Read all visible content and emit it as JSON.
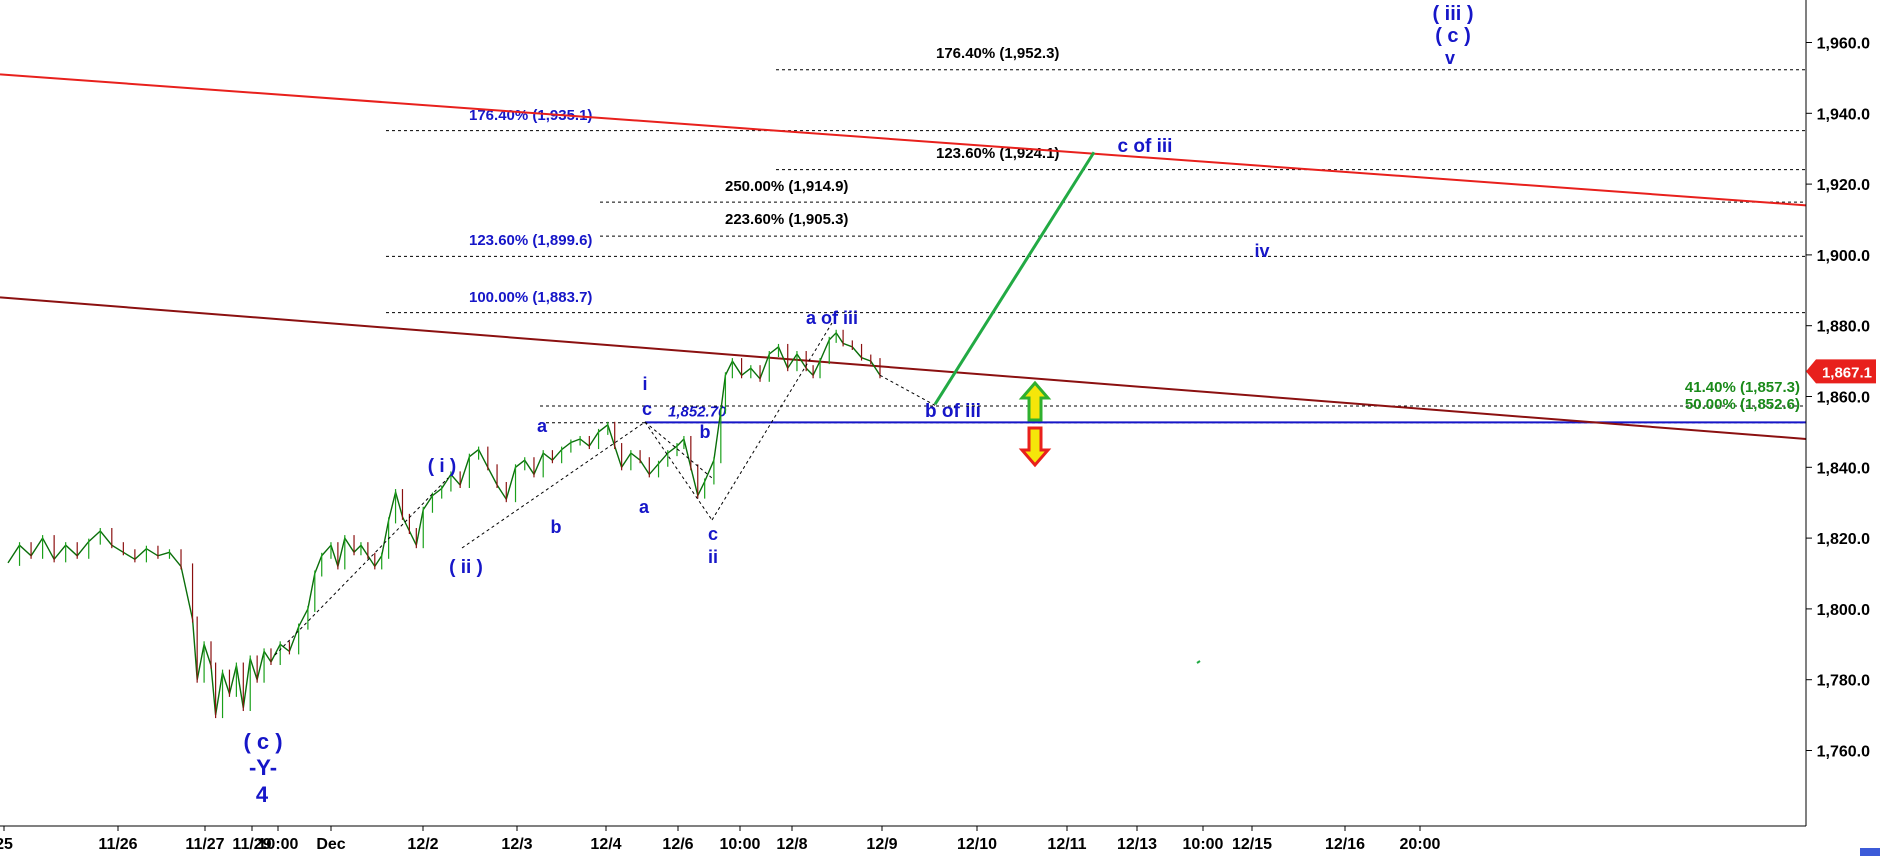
{
  "chart_data": {
    "type": "candlestick",
    "title": "",
    "xlabel": "",
    "ylabel": "",
    "ylim": [
      1740,
      1972
    ],
    "y_ticks": [
      1760,
      1780,
      1800,
      1820,
      1840,
      1860,
      1880,
      1900,
      1920,
      1940,
      1960
    ],
    "y_tick_labels": [
      "1,760.0",
      "1,780.0",
      "1,800.0",
      "1,820.0",
      "1,840.0",
      "1,860.0",
      "1,880.0",
      "1,900.0",
      "1,920.0",
      "1,940.0",
      "1,960.0"
    ],
    "x_tick_labels": [
      "25",
      "11/26",
      "11/27",
      "11/29",
      "10:00",
      "Dec",
      "12/2",
      "12/3",
      "12/4",
      "12/6",
      "10:00",
      "12/8",
      "12/9",
      "12/10",
      "12/11",
      "12/13",
      "10:00",
      "12/15",
      "12/16",
      "20:00"
    ],
    "current_price": {
      "value": 1867.1,
      "label": "1,867.1",
      "color": "#e8201c"
    },
    "price_path": [
      [
        0,
        1813
      ],
      [
        0.5,
        1818
      ],
      [
        1,
        1815
      ],
      [
        1.5,
        1820
      ],
      [
        2,
        1814
      ],
      [
        2.5,
        1818
      ],
      [
        3,
        1815
      ],
      [
        3.5,
        1819
      ],
      [
        4,
        1822
      ],
      [
        4.5,
        1818
      ],
      [
        5,
        1816
      ],
      [
        5.5,
        1814
      ],
      [
        6,
        1817
      ],
      [
        6.5,
        1815
      ],
      [
        7,
        1816
      ],
      [
        7.5,
        1812
      ],
      [
        8,
        1797
      ],
      [
        8.2,
        1780
      ],
      [
        8.5,
        1790
      ],
      [
        8.8,
        1784
      ],
      [
        9,
        1770
      ],
      [
        9.3,
        1782
      ],
      [
        9.6,
        1776
      ],
      [
        9.9,
        1784
      ],
      [
        10.2,
        1772
      ],
      [
        10.5,
        1786
      ],
      [
        10.8,
        1780
      ],
      [
        11.1,
        1788
      ],
      [
        11.4,
        1785
      ],
      [
        11.8,
        1790
      ],
      [
        12.2,
        1788
      ],
      [
        12.6,
        1795
      ],
      [
        13,
        1800
      ],
      [
        13.3,
        1810
      ],
      [
        13.6,
        1815
      ],
      [
        14,
        1818
      ],
      [
        14.3,
        1812
      ],
      [
        14.6,
        1820
      ],
      [
        15,
        1816
      ],
      [
        15.3,
        1818
      ],
      [
        15.6,
        1815
      ],
      [
        15.9,
        1812
      ],
      [
        16.2,
        1815
      ],
      [
        16.5,
        1825
      ],
      [
        16.8,
        1833
      ],
      [
        17.1,
        1826
      ],
      [
        17.4,
        1822
      ],
      [
        17.7,
        1818
      ],
      [
        18,
        1828
      ],
      [
        18.4,
        1832
      ],
      [
        18.8,
        1834
      ],
      [
        19.2,
        1838
      ],
      [
        19.6,
        1835
      ],
      [
        20,
        1843
      ],
      [
        20.4,
        1845
      ],
      [
        20.8,
        1840
      ],
      [
        21.2,
        1835
      ],
      [
        21.6,
        1831
      ],
      [
        22,
        1840
      ],
      [
        22.4,
        1842
      ],
      [
        22.8,
        1838
      ],
      [
        23.2,
        1844
      ],
      [
        23.6,
        1842
      ],
      [
        24,
        1845
      ],
      [
        24.4,
        1847
      ],
      [
        24.8,
        1848
      ],
      [
        25.2,
        1846
      ],
      [
        25.6,
        1850
      ],
      [
        26,
        1852
      ],
      [
        26.3,
        1846
      ],
      [
        26.6,
        1840
      ],
      [
        27,
        1844
      ],
      [
        27.4,
        1842
      ],
      [
        27.8,
        1838
      ],
      [
        28.2,
        1841
      ],
      [
        28.6,
        1844
      ],
      [
        29,
        1846
      ],
      [
        29.3,
        1848
      ],
      [
        29.6,
        1840
      ],
      [
        29.9,
        1832
      ],
      [
        30.2,
        1836
      ],
      [
        30.6,
        1842
      ],
      [
        30.9,
        1856
      ],
      [
        31.1,
        1866
      ],
      [
        31.4,
        1870
      ],
      [
        31.8,
        1866
      ],
      [
        32.2,
        1868
      ],
      [
        32.6,
        1865
      ],
      [
        33,
        1872
      ],
      [
        33.4,
        1874
      ],
      [
        33.8,
        1868
      ],
      [
        34.2,
        1872
      ],
      [
        34.6,
        1868
      ],
      [
        34.9,
        1866
      ],
      [
        35.2,
        1870
      ],
      [
        35.6,
        1876
      ],
      [
        35.9,
        1878
      ],
      [
        36.2,
        1875
      ],
      [
        36.6,
        1874
      ],
      [
        37,
        1871
      ],
      [
        37.4,
        1870
      ],
      [
        37.8,
        1866
      ]
    ],
    "price_x_range": [
      0,
      37.8
    ],
    "fib_levels": [
      {
        "label": "176.40% (1,952.3)",
        "value": 1952.3,
        "color": "#000000",
        "x0": 776,
        "x1": 1500
      },
      {
        "label": "176.40% (1,935.1)",
        "value": 1935.1,
        "color": "#1616c8",
        "x0": 386,
        "x1": 1500
      },
      {
        "label": "123.60% (1,924.1)",
        "value": 1924.1,
        "color": "#000000",
        "x0": 776,
        "x1": 1500
      },
      {
        "label": "250.00% (1,914.9)",
        "value": 1914.9,
        "color": "#000000",
        "x0": 600,
        "x1": 1500
      },
      {
        "label": "223.60% (1,905.3)",
        "value": 1905.3,
        "color": "#000000",
        "x0": 600,
        "x1": 1500
      },
      {
        "label": "123.60% (1,899.6)",
        "value": 1899.6,
        "color": "#1616c8",
        "x0": 386,
        "x1": 1500
      },
      {
        "label": "100.00% (1,883.7)",
        "value": 1883.7,
        "color": "#1616c8",
        "x0": 386,
        "x1": 1500
      },
      {
        "label": "41.40% (1,857.3)",
        "value": 1857.3,
        "color": "#1a8a1a",
        "x0": 540,
        "x1": 1500
      },
      {
        "label": "50.00% (1,852.6)",
        "value": 1852.6,
        "color": "#1a8a1a",
        "x0": 540,
        "x1": 1500
      }
    ],
    "support_level": {
      "label": "1,852.70",
      "value": 1852.7,
      "color": "#1616c8"
    },
    "trendlines": [
      {
        "name": "",
        "color": "#e8201c",
        "y_start": 1951,
        "y_end": 1914
      },
      {
        "name": "",
        "color": "#8b1010",
        "y_start": 1888,
        "y_end": 1848
      }
    ],
    "projection": {
      "color": "#22aa44",
      "from": 1857.8,
      "to": 1929
    },
    "wave_labels": [
      {
        "text": "( iii )",
        "size": 20
      },
      {
        "text": "( c )",
        "size": 20
      },
      {
        "text": "v",
        "size": 18
      },
      {
        "text": "c of iii",
        "size": 19
      },
      {
        "text": "iv",
        "size": 18
      },
      {
        "text": "a of iii",
        "size": 18
      },
      {
        "text": "b of iii",
        "size": 19
      },
      {
        "text": "i",
        "size": 18
      },
      {
        "text": "c",
        "size": 18
      },
      {
        "text": "a",
        "size": 18
      },
      {
        "text": "b",
        "size": 18
      },
      {
        "text": "a",
        "size": 18
      },
      {
        "text": "b",
        "size": 18
      },
      {
        "text": "c",
        "size": 18
      },
      {
        "text": "ii",
        "size": 18
      },
      {
        "text": "( i )",
        "size": 19
      },
      {
        "text": "( ii )",
        "size": 19
      },
      {
        "text": "( c )",
        "size": 22
      },
      {
        "text": "-Y-",
        "size": 22
      },
      {
        "text": "4",
        "size": 22
      }
    ],
    "arrows": [
      {
        "direction": "up",
        "fill": "#f5e60a",
        "stroke": "#2fb02f"
      },
      {
        "direction": "down",
        "fill": "#f5e60a",
        "stroke": "#e8201c"
      }
    ]
  }
}
